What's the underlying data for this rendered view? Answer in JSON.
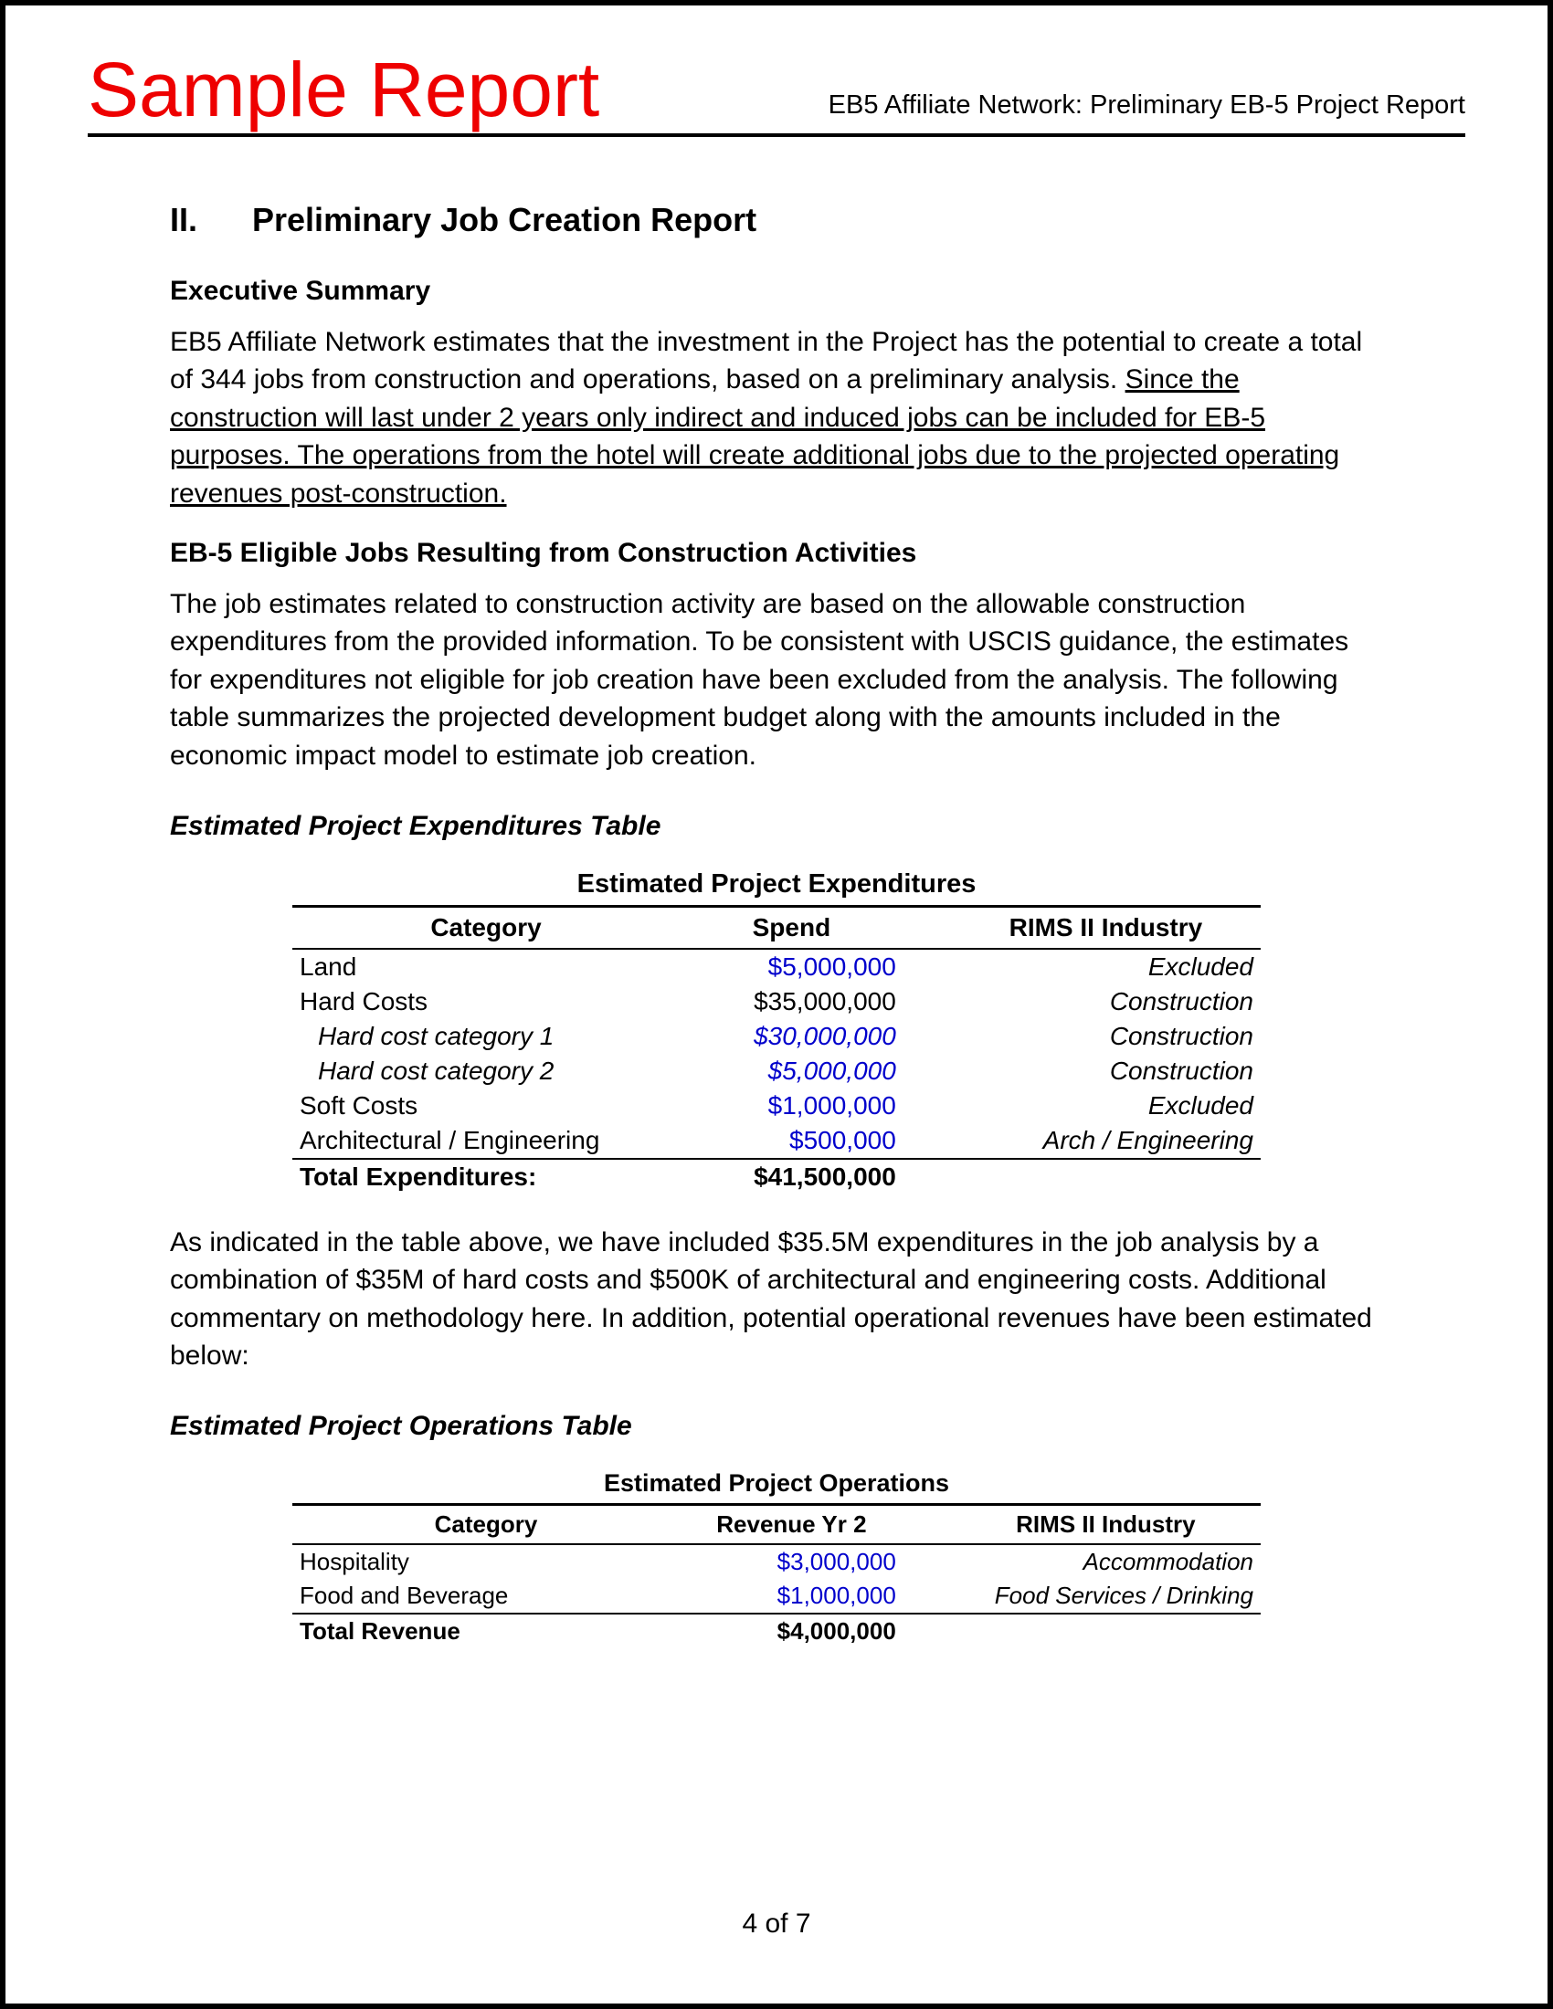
{
  "header": {
    "watermark": "Sample Report",
    "right": "EB5 Affiliate Network: Preliminary EB-5 Project Report"
  },
  "section": {
    "number": "II.",
    "title": "Preliminary Job Creation Report"
  },
  "exec_summary": {
    "heading": "Executive Summary",
    "p1_a": "EB5 Affiliate Network estimates that the investment in the Project has the potential to create a total of 344 jobs from construction and operations, based on a preliminary analysis. ",
    "p1_u": "Since the construction will last under 2 years only indirect and induced jobs can be included for EB-5 purposes. The operations from the hotel will create additional jobs due to the projected operating revenues post-construction."
  },
  "construction": {
    "heading": "EB-5 Eligible Jobs Resulting from Construction Activities",
    "p1": "The job estimates related to construction activity are based on the allowable construction expenditures from the provided information. To be consistent with USCIS guidance, the estimates for expenditures not eligible for job creation have been excluded from the analysis. The following table summarizes the projected development budget along with the amounts included in the economic impact model to estimate job creation."
  },
  "expend_table": {
    "heading": "Estimated Project Expenditures Table",
    "title": "Estimated Project Expenditures",
    "columns": [
      "Category",
      "Spend",
      "RIMS II Industry"
    ],
    "rows": [
      {
        "cat": "Land",
        "val": "$5,000,000",
        "ind": "Excluded",
        "blue": true
      },
      {
        "cat": "Hard Costs",
        "val": "$35,000,000",
        "ind": "Construction",
        "blue": false
      },
      {
        "cat": "Hard cost category 1",
        "val": "$30,000,000",
        "ind": "Construction",
        "blue": true,
        "indent": true
      },
      {
        "cat": "Hard cost category 2",
        "val": "$5,000,000",
        "ind": "Construction",
        "blue": true,
        "indent": true
      },
      {
        "cat": "Soft Costs",
        "val": "$1,000,000",
        "ind": "Excluded",
        "blue": true
      },
      {
        "cat": "Architectural / Engineering",
        "val": "$500,000",
        "ind": "Arch / Engineering",
        "blue": true,
        "underline": true
      }
    ],
    "total": {
      "label": "Total Expenditures:",
      "val": "$41,500,000"
    }
  },
  "after_expend": {
    "p1": "As indicated in the table above, we have included $35.5M expenditures in the job analysis by a combination of $35M of hard costs and $500K of architectural and engineering costs. Additional commentary on methodology here. In addition, potential operational revenues have been estimated below:"
  },
  "ops_table": {
    "heading": "Estimated Project Operations Table",
    "title": "Estimated Project Operations",
    "columns": [
      "Category",
      "Revenue Yr 2",
      "RIMS II Industry"
    ],
    "rows": [
      {
        "cat": "Hospitality",
        "val": "$3,000,000",
        "ind": "Accommodation",
        "blue": true
      },
      {
        "cat": "Food and Beverage",
        "val": "$1,000,000",
        "ind": "Food Services / Drinking",
        "blue": true,
        "underline": true
      }
    ],
    "total": {
      "label": "Total Revenue",
      "val": "$4,000,000"
    }
  },
  "footer": {
    "page": "4 of 7"
  },
  "style": {
    "watermark_color": "#ee0000",
    "link_blue": "#0000cc",
    "border_color": "#000000",
    "background": "#ffffff",
    "body_font_size_pt": 22,
    "watermark_font_size_pt": 63
  }
}
